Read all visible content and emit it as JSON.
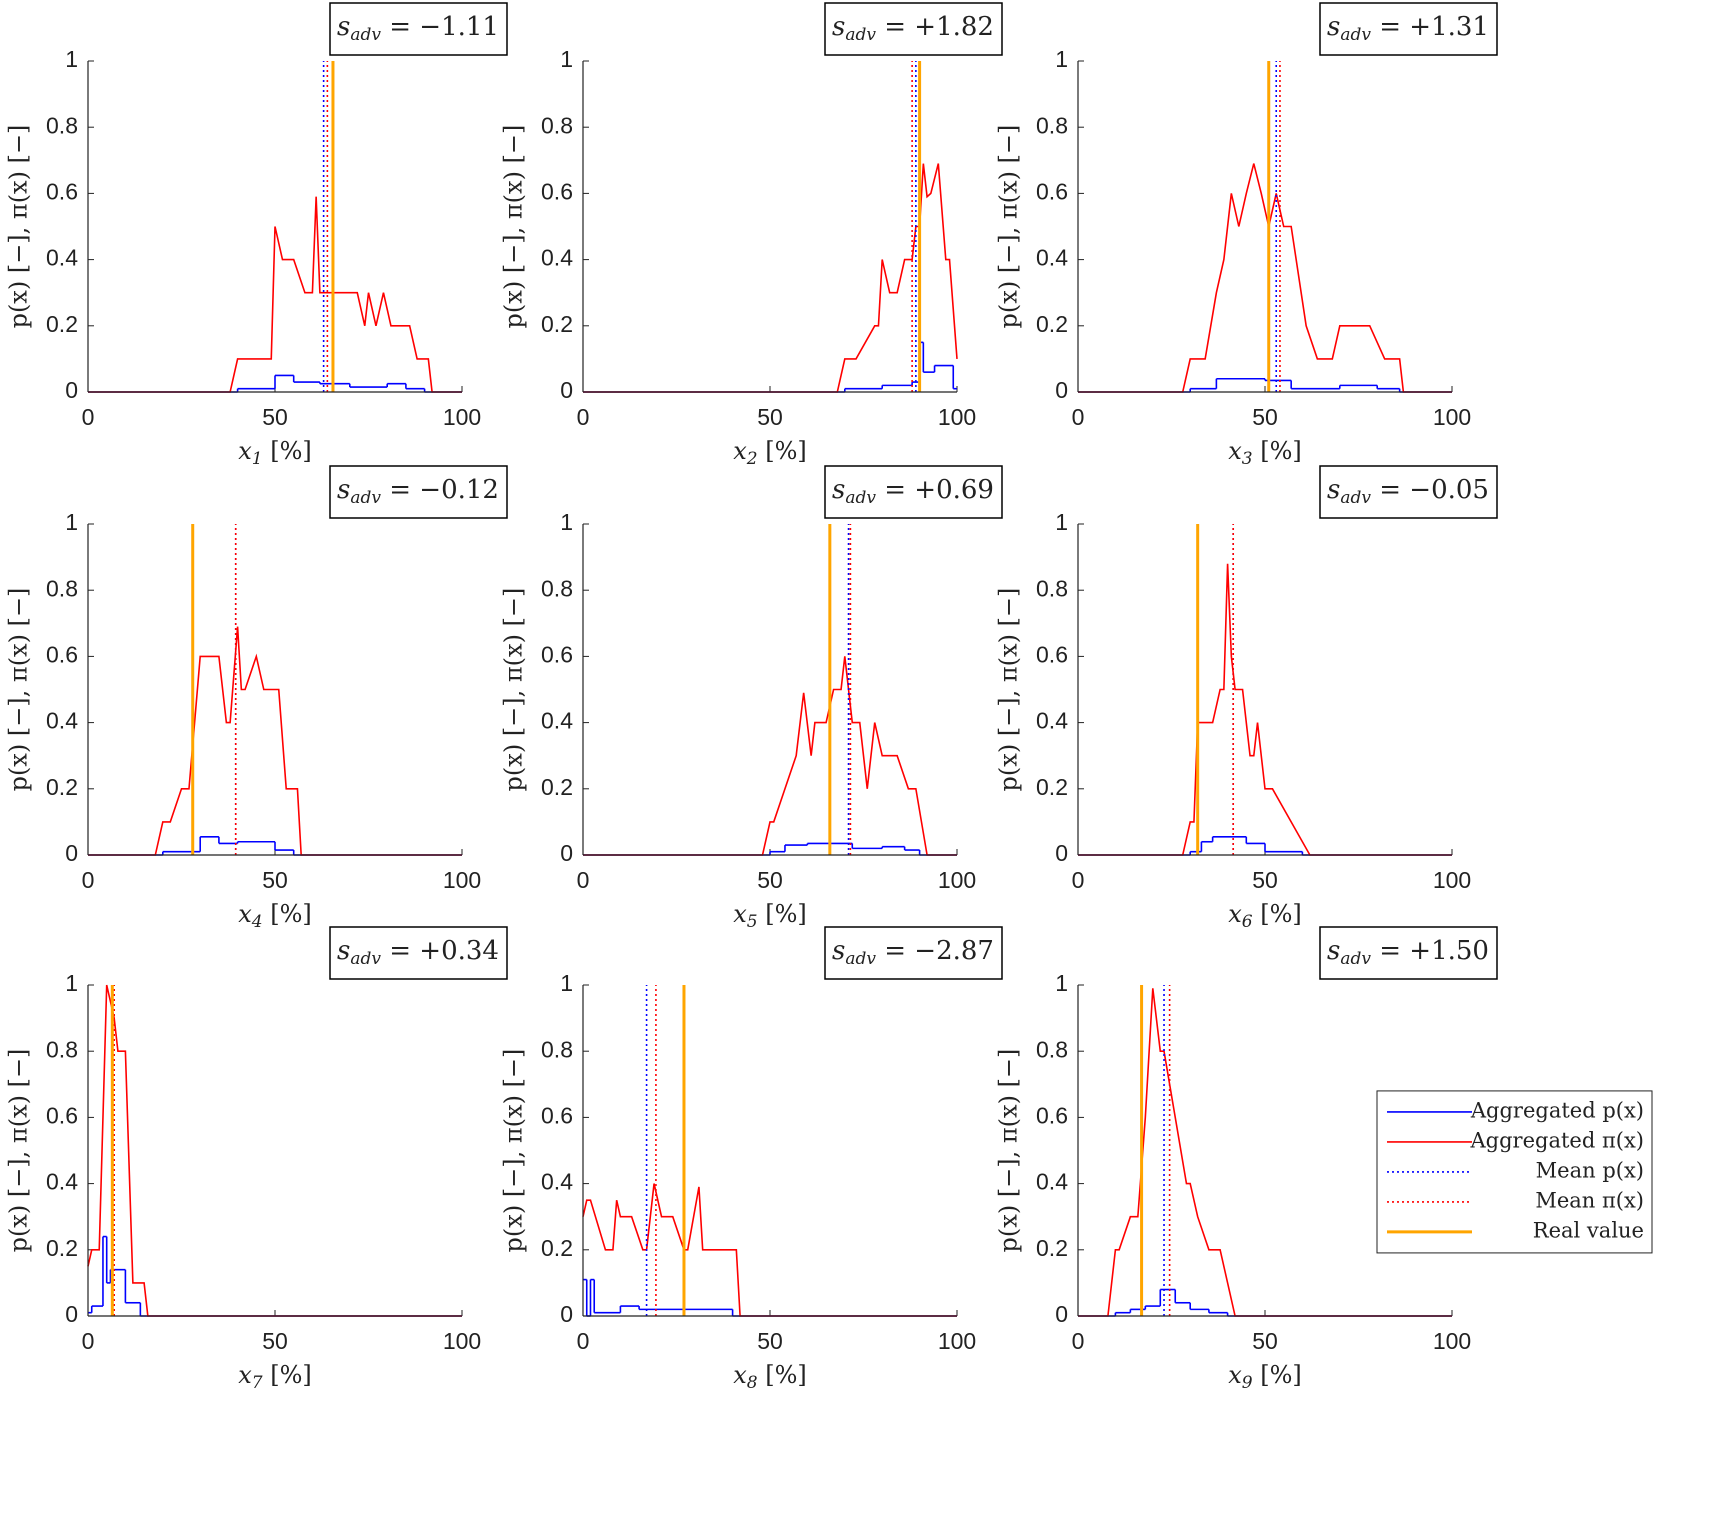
{
  "chart_data": [
    {
      "type": "line",
      "title": {
        "main": "s",
        "sub": "adv",
        "rest": " = −1.11"
      },
      "xlabel": {
        "main": "x",
        "sub": "1",
        "rest": " [%]"
      },
      "ylabel": "p(x) [−], π(x) [−]",
      "xlim": [
        0,
        100
      ],
      "xticks": [
        0,
        50,
        100
      ],
      "ylim": [
        0,
        1
      ],
      "yticks": [
        0,
        0.2,
        0.4,
        0.6,
        0.8,
        1
      ],
      "series": [
        {
          "color": "#0000ff",
          "style": "solid",
          "bins": [
            0,
            40,
            50,
            55,
            62,
            70,
            80,
            85,
            90,
            100
          ],
          "values": [
            0,
            0.01,
            0.05,
            0.03,
            0.025,
            0.015,
            0.025,
            0.01,
            0
          ]
        },
        {
          "color": "#ff0000",
          "style": "solid",
          "x": [
            0,
            38,
            40,
            49,
            50,
            52,
            55,
            58,
            60,
            61,
            62,
            72,
            74,
            75,
            77,
            79,
            81,
            86,
            88,
            91,
            92,
            100
          ],
          "values": [
            0,
            0,
            0.1,
            0.1,
            0.5,
            0.4,
            0.4,
            0.3,
            0.3,
            0.59,
            0.3,
            0.3,
            0.2,
            0.3,
            0.2,
            0.3,
            0.2,
            0.2,
            0.1,
            0.1,
            0,
            0
          ]
        },
        {
          "color": "#0000ff",
          "style": "dotted",
          "x": 63
        },
        {
          "color": "#ff0000",
          "style": "dotted",
          "x": 64
        },
        {
          "color": "#ffa500",
          "style": "solid",
          "linewidth": 3,
          "x": 65.5
        }
      ]
    },
    {
      "type": "line",
      "title": {
        "main": "s",
        "sub": "adv",
        "rest": " = +1.82"
      },
      "xlabel": {
        "main": "x",
        "sub": "2",
        "rest": " [%]"
      },
      "ylabel": "p(x) [−], π(x) [−]",
      "xlim": [
        0,
        100
      ],
      "xticks": [
        0,
        50,
        100
      ],
      "ylim": [
        0,
        1
      ],
      "yticks": [
        0,
        0.2,
        0.4,
        0.6,
        0.8,
        1
      ],
      "series": [
        {
          "color": "#0000ff",
          "style": "solid",
          "bins": [
            0,
            70,
            80,
            88,
            90,
            91,
            94,
            99,
            100
          ],
          "values": [
            0,
            0.01,
            0.02,
            0.03,
            0.15,
            0.06,
            0.08,
            0.01
          ]
        },
        {
          "color": "#ff0000",
          "style": "solid",
          "x": [
            0,
            68,
            70,
            73,
            78,
            79,
            80,
            82,
            84,
            86,
            88,
            89,
            90,
            91,
            92,
            93,
            95,
            97,
            98,
            100
          ],
          "values": [
            0,
            0,
            0.1,
            0.1,
            0.2,
            0.2,
            0.4,
            0.3,
            0.3,
            0.4,
            0.4,
            0.5,
            0.5,
            0.69,
            0.59,
            0.6,
            0.69,
            0.4,
            0.4,
            0.1
          ]
        },
        {
          "color": "#0000ff",
          "style": "dotted",
          "x": 89
        },
        {
          "color": "#ff0000",
          "style": "dotted",
          "x": 88
        },
        {
          "color": "#ffa500",
          "style": "solid",
          "linewidth": 3,
          "x": 90
        }
      ]
    },
    {
      "type": "line",
      "title": {
        "main": "s",
        "sub": "adv",
        "rest": " = +1.31"
      },
      "xlabel": {
        "main": "x",
        "sub": "3",
        "rest": " [%]"
      },
      "ylabel": "p(x) [−], π(x) [−]",
      "xlim": [
        0,
        100
      ],
      "xticks": [
        0,
        50,
        100
      ],
      "ylim": [
        0,
        1
      ],
      "yticks": [
        0,
        0.2,
        0.4,
        0.6,
        0.8,
        1
      ],
      "series": [
        {
          "color": "#0000ff",
          "style": "solid",
          "bins": [
            0,
            30,
            37,
            50,
            57,
            70,
            80,
            86,
            100
          ],
          "values": [
            0,
            0.01,
            0.04,
            0.035,
            0.01,
            0.02,
            0.01,
            0
          ]
        },
        {
          "color": "#ff0000",
          "style": "solid",
          "x": [
            0,
            28,
            30,
            34,
            37,
            39,
            41,
            43,
            45,
            47,
            49,
            51,
            53,
            55,
            57,
            61,
            64,
            68,
            70,
            78,
            82,
            86,
            87,
            100
          ],
          "values": [
            0,
            0,
            0.1,
            0.1,
            0.3,
            0.4,
            0.6,
            0.5,
            0.6,
            0.69,
            0.6,
            0.5,
            0.6,
            0.5,
            0.5,
            0.2,
            0.1,
            0.1,
            0.2,
            0.2,
            0.1,
            0.1,
            0,
            0
          ]
        },
        {
          "color": "#0000ff",
          "style": "dotted",
          "x": 53
        },
        {
          "color": "#ff0000",
          "style": "dotted",
          "x": 54
        },
        {
          "color": "#ffa500",
          "style": "solid",
          "linewidth": 3,
          "x": 51
        }
      ]
    },
    {
      "type": "line",
      "title": {
        "main": "s",
        "sub": "adv",
        "rest": " = −0.12"
      },
      "xlabel": {
        "main": "x",
        "sub": "4",
        "rest": " [%]"
      },
      "ylabel": "p(x) [−], π(x) [−]",
      "xlim": [
        0,
        100
      ],
      "xticks": [
        0,
        50,
        100
      ],
      "ylim": [
        0,
        1
      ],
      "yticks": [
        0,
        0.2,
        0.4,
        0.6,
        0.8,
        1
      ],
      "series": [
        {
          "color": "#0000ff",
          "style": "solid",
          "bins": [
            0,
            20,
            30,
            35,
            40,
            50,
            55,
            100
          ],
          "values": [
            0,
            0.01,
            0.055,
            0.035,
            0.04,
            0.015,
            0
          ]
        },
        {
          "color": "#ff0000",
          "style": "solid",
          "x": [
            0,
            18,
            20,
            22,
            25,
            27,
            30,
            35,
            37,
            38,
            40,
            41,
            42,
            45,
            47,
            51,
            53,
            56,
            57,
            100
          ],
          "values": [
            0,
            0,
            0.1,
            0.1,
            0.2,
            0.2,
            0.6,
            0.6,
            0.4,
            0.4,
            0.69,
            0.5,
            0.5,
            0.6,
            0.5,
            0.5,
            0.2,
            0.2,
            0,
            0
          ]
        },
        {
          "color": "#0000ff",
          "style": "dotted",
          "x": 39.5
        },
        {
          "color": "#ff0000",
          "style": "dotted",
          "x": 39.5
        },
        {
          "color": "#ffa500",
          "style": "solid",
          "linewidth": 3,
          "x": 28
        }
      ]
    },
    {
      "type": "line",
      "title": {
        "main": "s",
        "sub": "adv",
        "rest": " = +0.69"
      },
      "xlabel": {
        "main": "x",
        "sub": "5",
        "rest": " [%]"
      },
      "ylabel": "p(x) [−], π(x) [−]",
      "xlim": [
        0,
        100
      ],
      "xticks": [
        0,
        50,
        100
      ],
      "ylim": [
        0,
        1
      ],
      "yticks": [
        0,
        0.2,
        0.4,
        0.6,
        0.8,
        1
      ],
      "series": [
        {
          "color": "#0000ff",
          "style": "solid",
          "bins": [
            0,
            50,
            54,
            60,
            72,
            80,
            86,
            90,
            100
          ],
          "values": [
            0,
            0.01,
            0.03,
            0.035,
            0.02,
            0.025,
            0.015,
            0
          ]
        },
        {
          "color": "#ff0000",
          "style": "solid",
          "x": [
            0,
            48,
            50,
            51,
            54,
            57,
            59,
            61,
            62,
            65,
            67,
            69,
            70,
            72,
            74,
            76,
            78,
            80,
            84,
            87,
            89,
            92,
            100
          ],
          "values": [
            0,
            0,
            0.1,
            0.1,
            0.2,
            0.3,
            0.49,
            0.3,
            0.4,
            0.4,
            0.5,
            0.5,
            0.6,
            0.4,
            0.4,
            0.2,
            0.4,
            0.3,
            0.3,
            0.2,
            0.2,
            0,
            0
          ]
        },
        {
          "color": "#0000ff",
          "style": "dotted",
          "x": 71
        },
        {
          "color": "#ff0000",
          "style": "dotted",
          "x": 71.5
        },
        {
          "color": "#ffa500",
          "style": "solid",
          "linewidth": 3,
          "x": 66
        }
      ]
    },
    {
      "type": "line",
      "title": {
        "main": "s",
        "sub": "adv",
        "rest": " = −0.05"
      },
      "xlabel": {
        "main": "x",
        "sub": "6",
        "rest": " [%]"
      },
      "ylabel": "p(x) [−], π(x) [−]",
      "xlim": [
        0,
        100
      ],
      "xticks": [
        0,
        50,
        100
      ],
      "ylim": [
        0,
        1
      ],
      "yticks": [
        0,
        0.2,
        0.4,
        0.6,
        0.8,
        1
      ],
      "series": [
        {
          "color": "#0000ff",
          "style": "solid",
          "bins": [
            0,
            30,
            33,
            36,
            45,
            50,
            60,
            100
          ],
          "values": [
            0,
            0.01,
            0.04,
            0.055,
            0.035,
            0.01,
            0
          ]
        },
        {
          "color": "#ff0000",
          "style": "solid",
          "x": [
            0,
            28,
            30,
            31,
            32,
            36,
            38,
            39,
            40,
            41,
            42,
            44,
            46,
            47,
            48,
            50,
            52,
            62,
            100
          ],
          "values": [
            0,
            0,
            0.1,
            0.1,
            0.4,
            0.4,
            0.5,
            0.5,
            0.88,
            0.6,
            0.5,
            0.5,
            0.3,
            0.3,
            0.4,
            0.2,
            0.2,
            0,
            0
          ]
        },
        {
          "color": "#0000ff",
          "style": "dotted",
          "x": 41.5
        },
        {
          "color": "#ff0000",
          "style": "dotted",
          "x": 41.5
        },
        {
          "color": "#ffa500",
          "style": "solid",
          "linewidth": 3,
          "x": 32
        }
      ]
    },
    {
      "type": "line",
      "title": {
        "main": "s",
        "sub": "adv",
        "rest": " = +0.34"
      },
      "xlabel": {
        "main": "x",
        "sub": "7",
        "rest": " [%]"
      },
      "ylabel": "p(x) [−], π(x) [−]",
      "xlim": [
        0,
        100
      ],
      "xticks": [
        0,
        50,
        100
      ],
      "ylim": [
        0,
        1
      ],
      "yticks": [
        0,
        0.2,
        0.4,
        0.6,
        0.8,
        1
      ],
      "series": [
        {
          "color": "#0000ff",
          "style": "solid",
          "bins": [
            0,
            1,
            4,
            5,
            6,
            10,
            14,
            100
          ],
          "values": [
            0.01,
            0.03,
            0.24,
            0.1,
            0.14,
            0.04,
            0
          ]
        },
        {
          "color": "#ff0000",
          "style": "solid",
          "x": [
            0,
            1,
            3,
            5,
            7,
            8,
            10,
            12,
            15,
            16,
            100
          ],
          "values": [
            0.15,
            0.2,
            0.2,
            1,
            0.9,
            0.8,
            0.8,
            0.1,
            0.1,
            0,
            0
          ]
        },
        {
          "color": "#0000ff",
          "style": "dotted",
          "x": 7
        },
        {
          "color": "#ff0000",
          "style": "dotted",
          "x": 7
        },
        {
          "color": "#ffa500",
          "style": "solid",
          "linewidth": 3,
          "x": 6.5
        }
      ]
    },
    {
      "type": "line",
      "title": {
        "main": "s",
        "sub": "adv",
        "rest": " = −2.87"
      },
      "xlabel": {
        "main": "x",
        "sub": "8",
        "rest": " [%]"
      },
      "ylabel": "p(x) [−], π(x) [−]",
      "xlim": [
        0,
        100
      ],
      "xticks": [
        0,
        50,
        100
      ],
      "ylim": [
        0,
        1
      ],
      "yticks": [
        0,
        0.2,
        0.4,
        0.6,
        0.8,
        1
      ],
      "series": [
        {
          "color": "#0000ff",
          "style": "solid",
          "bins": [
            0,
            1,
            2,
            3,
            10,
            15,
            27,
            40,
            100
          ],
          "values": [
            0.11,
            0,
            0.11,
            0.01,
            0.03,
            0.02,
            0.02,
            0
          ]
        },
        {
          "color": "#ff0000",
          "style": "solid",
          "x": [
            0,
            1,
            2,
            6,
            8,
            9,
            10,
            13,
            16,
            17,
            19,
            21,
            24,
            27,
            28,
            31,
            32,
            41,
            42,
            100
          ],
          "values": [
            0.3,
            0.35,
            0.35,
            0.2,
            0.2,
            0.35,
            0.3,
            0.3,
            0.2,
            0.2,
            0.4,
            0.3,
            0.3,
            0.2,
            0.2,
            0.39,
            0.2,
            0.2,
            0,
            0
          ]
        },
        {
          "color": "#0000ff",
          "style": "dotted",
          "x": 17
        },
        {
          "color": "#ff0000",
          "style": "dotted",
          "x": 19.5
        },
        {
          "color": "#ffa500",
          "style": "solid",
          "linewidth": 3,
          "x": 27
        }
      ]
    },
    {
      "type": "line",
      "title": {
        "main": "s",
        "sub": "adv",
        "rest": " = +1.50"
      },
      "xlabel": {
        "main": "x",
        "sub": "9",
        "rest": " [%]"
      },
      "ylabel": "p(x) [−], π(x) [−]",
      "xlim": [
        0,
        100
      ],
      "xticks": [
        0,
        50,
        100
      ],
      "ylim": [
        0,
        1
      ],
      "yticks": [
        0,
        0.2,
        0.4,
        0.6,
        0.8,
        1
      ],
      "legend": "east",
      "series": [
        {
          "name": "Aggregated p(x)",
          "color": "#0000ff",
          "style": "solid",
          "bins": [
            0,
            10,
            14,
            18,
            22,
            26,
            30,
            35,
            40,
            100
          ],
          "values": [
            0,
            0.01,
            0.02,
            0.03,
            0.08,
            0.04,
            0.02,
            0.01,
            0
          ]
        },
        {
          "name": "Aggregated π(x)",
          "color": "#ff0000",
          "style": "solid",
          "x": [
            0,
            8,
            10,
            11,
            14,
            16,
            18,
            20,
            22,
            23,
            26,
            29,
            30,
            32,
            35,
            38,
            42,
            100
          ],
          "values": [
            0,
            0,
            0.2,
            0.2,
            0.3,
            0.3,
            0.6,
            0.99,
            0.8,
            0.8,
            0.6,
            0.4,
            0.4,
            0.3,
            0.2,
            0.2,
            0,
            0
          ]
        },
        {
          "name": "Mean p(x)",
          "color": "#0000ff",
          "style": "dotted",
          "x": 23
        },
        {
          "name": "Mean π(x)",
          "color": "#ff0000",
          "style": "dotted",
          "x": 24.5
        },
        {
          "name": "Real value",
          "color": "#ffa500",
          "style": "solid",
          "linewidth": 3,
          "x": 17
        }
      ]
    }
  ]
}
